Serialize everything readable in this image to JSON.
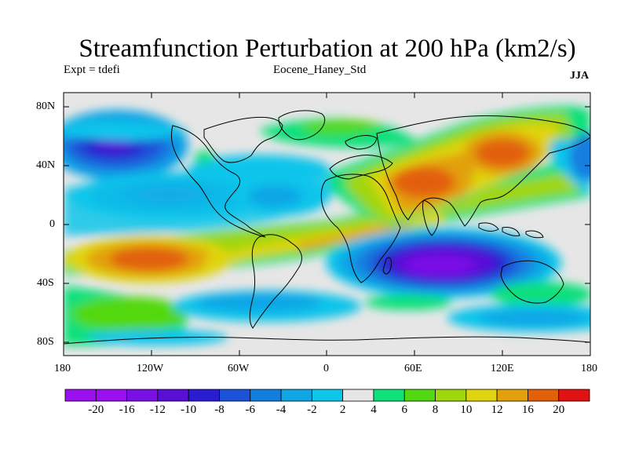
{
  "title": "Streamfunction Perturbation at 200 hPa (km2/s)",
  "subtitle_left": "Expt = tdefi",
  "subtitle_center": "Eocene_Haney_Std",
  "subtitle_right": "JJA",
  "lat_ticks": [
    "80N",
    "40N",
    "0",
    "40S",
    "80S"
  ],
  "lon_ticks": [
    "180",
    "120W",
    "60W",
    "0",
    "60E",
    "120E",
    "180"
  ],
  "colorbar": {
    "labels": [
      "-20",
      "-16",
      "-12",
      "-10",
      "-8",
      "-6",
      "-4",
      "-2",
      "2",
      "4",
      "6",
      "8",
      "10",
      "12",
      "16",
      "20"
    ],
    "levels": [
      -20,
      -16,
      -12,
      -10,
      -8,
      -6,
      -4,
      -2,
      2,
      4,
      6,
      8,
      10,
      12,
      16,
      20
    ],
    "colors": [
      "#9b10ee",
      "#7a10e6",
      "#5a0fd6",
      "#2a1cd0",
      "#1a52d8",
      "#147edf",
      "#10a6e6",
      "#0ec5ea",
      "#e6e6e6",
      "#0ee07a",
      "#52d810",
      "#a0d60c",
      "#e0d410",
      "#e2a00c",
      "#e2600a",
      "#e01212"
    ]
  }
}
